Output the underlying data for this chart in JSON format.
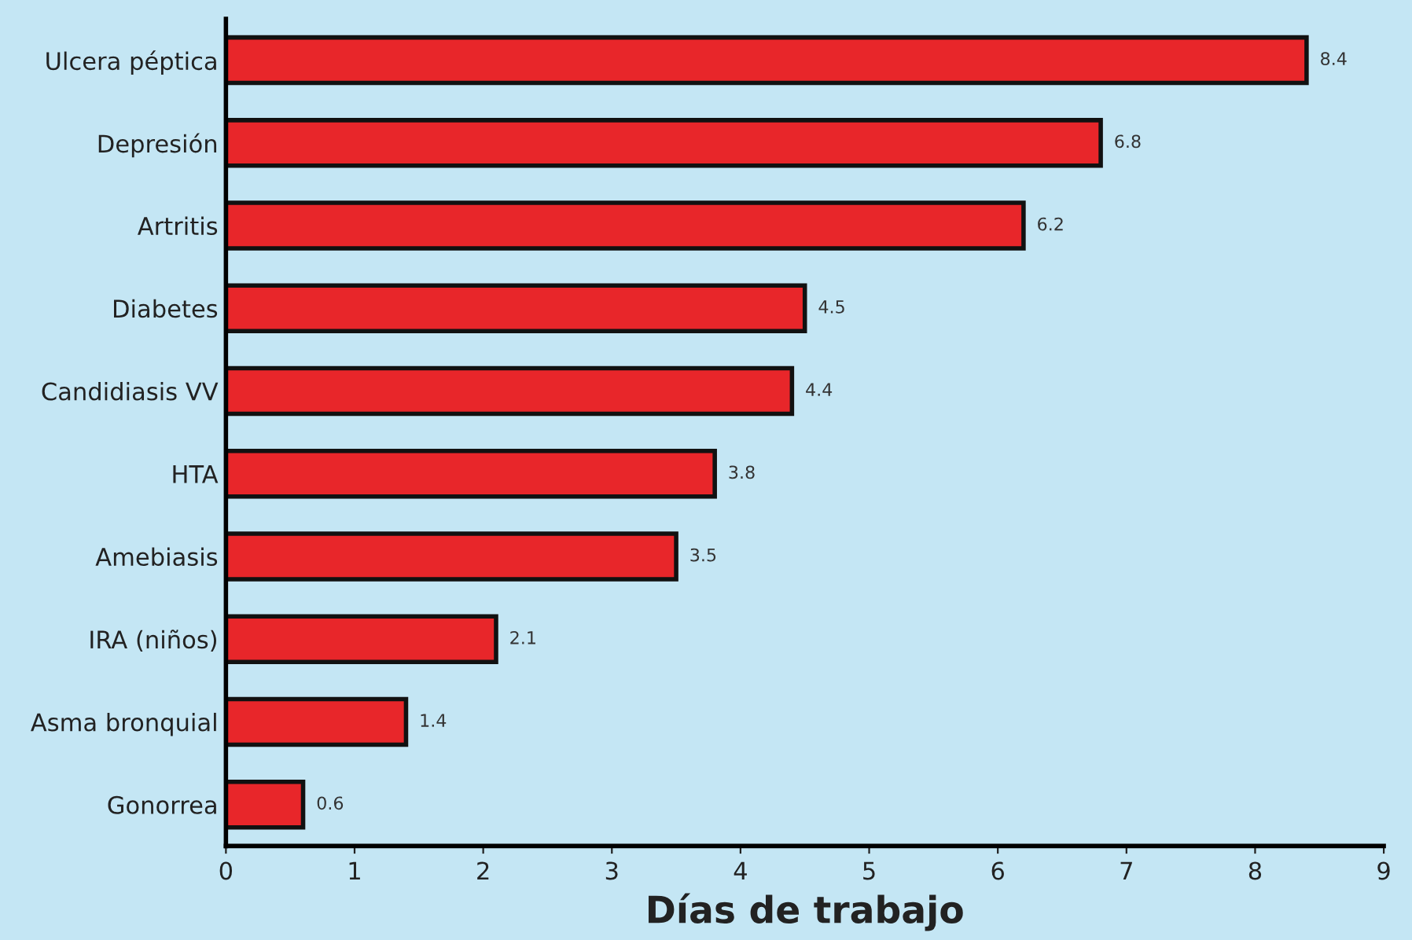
{
  "chart_data": {
    "type": "bar",
    "orientation": "horizontal",
    "xlabel": "Días de trabajo",
    "categories": [
      "Ulcera péptica",
      "Depresión",
      "Artritis",
      "Diabetes",
      "Candidiasis VV",
      "HTA",
      "Amebiasis",
      "IRA (niños)",
      "Asma bronquial",
      "Gonorrea"
    ],
    "values": [
      8.4,
      6.8,
      6.2,
      4.5,
      4.4,
      3.8,
      3.5,
      2.1,
      1.4,
      0.6
    ],
    "color": "#e8262a",
    "xlim": [
      0,
      9
    ],
    "xticks": [
      0,
      1,
      2,
      3,
      4,
      5,
      6,
      7,
      8,
      9
    ],
    "data_labels": true,
    "grid": false,
    "legend": false
  }
}
